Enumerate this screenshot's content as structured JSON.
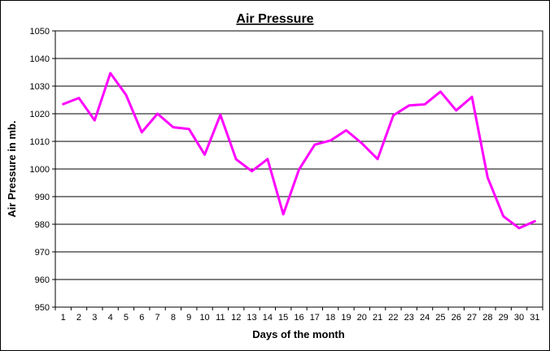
{
  "chart_data": {
    "type": "line",
    "title": "Air Pressure",
    "xlabel": "Days of the month",
    "ylabel": "Air Pressure in mb.",
    "categories": [
      "1",
      "2",
      "3",
      "4",
      "5",
      "6",
      "7",
      "8",
      "9",
      "10",
      "11",
      "12",
      "13",
      "14",
      "15",
      "16",
      "17",
      "18",
      "19",
      "20",
      "21",
      "22",
      "23",
      "24",
      "25",
      "26",
      "27",
      "28",
      "29",
      "30",
      "31"
    ],
    "series": [
      {
        "values": [
          1023.5,
          1025.7,
          1017.6,
          1034.7,
          1026.8,
          1013.3,
          1020.0,
          1015.1,
          1014.5,
          1005.2,
          1019.6,
          1003.5,
          999.2,
          1003.6,
          983.6,
          999.8,
          1008.8,
          1010.3,
          1014.0,
          1009.3,
          1003.6,
          1019.4,
          1023.0,
          1023.4,
          1028.0,
          1021.2,
          1026.1,
          996.9,
          982.9,
          978.6,
          981.1
        ],
        "color": "#ff00ff"
      }
    ],
    "ylim": [
      950,
      1050
    ],
    "yticks": [
      950,
      960,
      970,
      980,
      990,
      1000,
      1010,
      1020,
      1030,
      1040,
      1050
    ],
    "grid": "horizontal",
    "legend": "none"
  }
}
